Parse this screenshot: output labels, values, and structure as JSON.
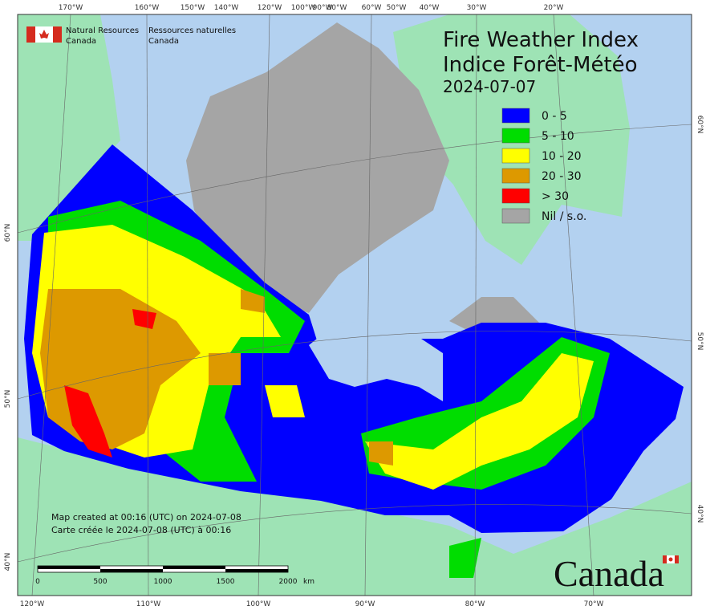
{
  "header": {
    "org_en": "Natural Resources",
    "org_en2": "Canada",
    "org_fr": "Ressources naturelles",
    "org_fr2": "Canada"
  },
  "title": [
    "Fire Weather Index",
    "Indice Forêt-Météo"
  ],
  "date": "2024-07-07",
  "legend": [
    {
      "label": "0 - 5",
      "color": "#0000ff"
    },
    {
      "label": "5 - 10",
      "color": "#00dd00"
    },
    {
      "label": "10 - 20",
      "color": "#ffff00"
    },
    {
      "label": "20 - 30",
      "color": "#dd9900"
    },
    {
      "label": "> 30",
      "color": "#ff0000"
    },
    {
      "label": "Nil / s.o.",
      "color": "#a5a5a5"
    }
  ],
  "notes": [
    "Map created at 00:16 (UTC) on 2024-07-08",
    "Carte créée le 2024-07-08 (UTC) à 00:16"
  ],
  "scale_bar": {
    "ticks": [
      0,
      500,
      1000,
      1500,
      2000
    ],
    "unit": "km"
  },
  "top_labels": [
    "170°W",
    "160°W",
    "150°W",
    "140°W",
    "120°W",
    "100°W",
    "90°W",
    "80°W",
    "60°W",
    "50°W",
    "40°W",
    "30°W",
    "20°W"
  ],
  "bottom_labels": [
    "120°W",
    "110°W",
    "100°W",
    "90°W",
    "80°W",
    "70°W"
  ],
  "left_labels": [
    "60°N",
    "50°N",
    "40°N"
  ],
  "right_labels": [
    "60°N",
    "50°N",
    "40°N"
  ],
  "wordmark": "Canada"
}
